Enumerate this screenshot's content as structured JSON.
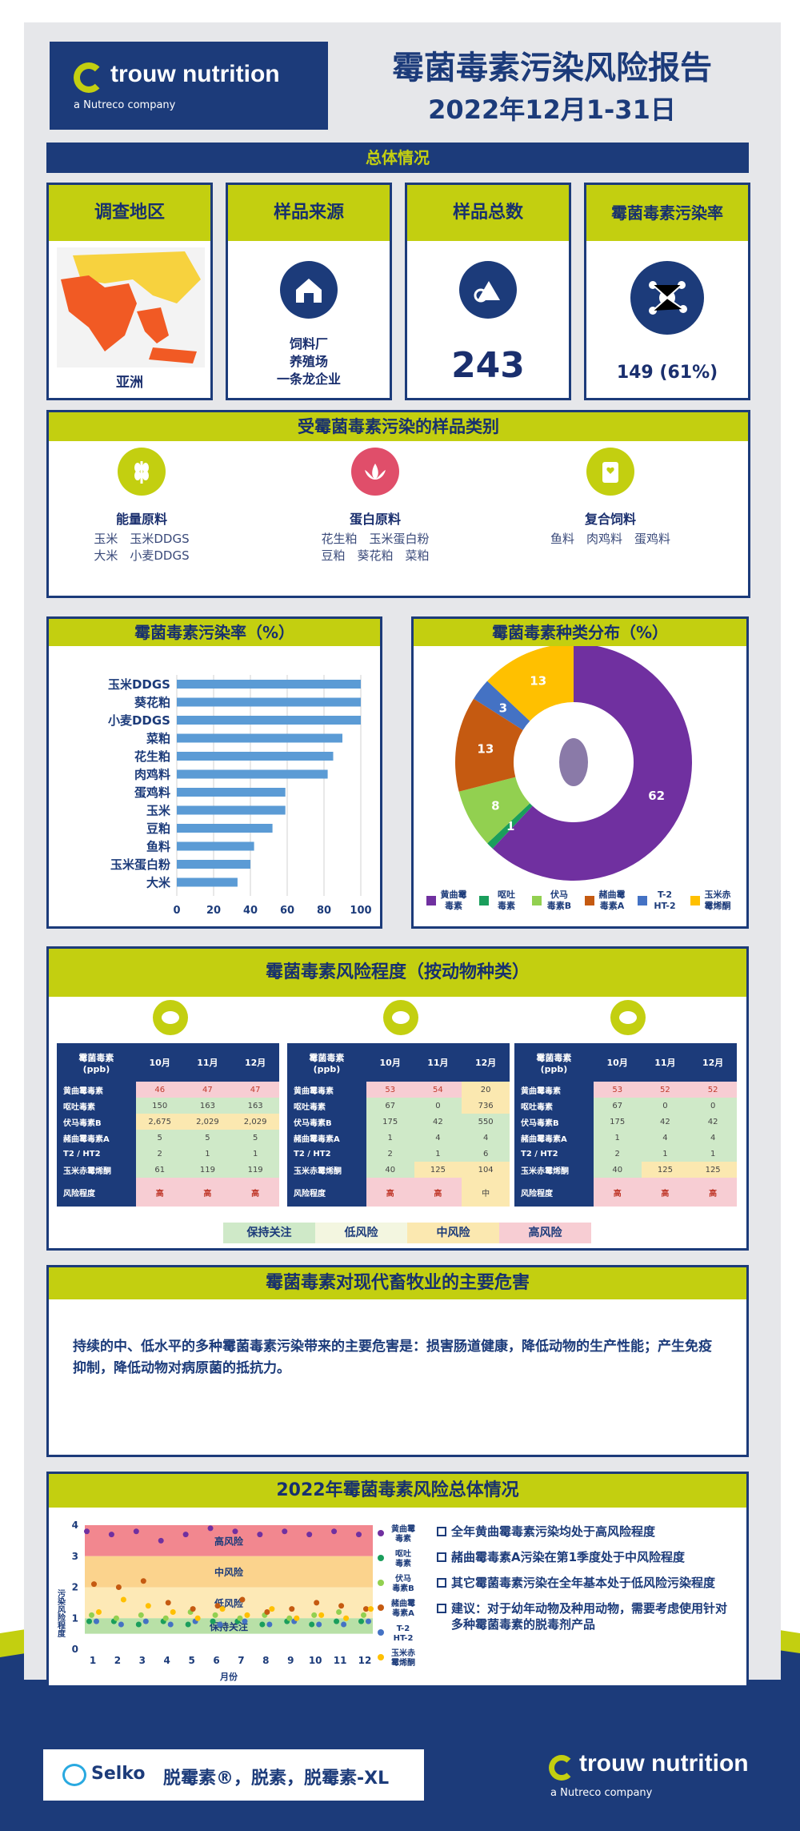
{
  "colors": {
    "navy": "#1c3b7a",
    "lime": "#c3cf10",
    "accent_blue": "#5b9bd5"
  },
  "header": {
    "logo_brand": "trouw nutrition",
    "logo_sub": "a Nutreco company",
    "title": "霉菌毒素污染风险报告",
    "date": "2022年12月1-31日"
  },
  "overview": {
    "band": "总体情况",
    "cards": [
      {
        "title": "调查地区",
        "value": "亚洲",
        "icon": "asia-map-icon"
      },
      {
        "title": "样品来源",
        "value": [
          "饲料厂",
          "养殖场",
          "一条龙企业"
        ],
        "icon": "barn-icon"
      },
      {
        "title": "样品总数",
        "value": "243",
        "icon": "sample-icon"
      },
      {
        "title": "霉菌毒素污染率",
        "value": "149 (61%)",
        "icon": "molecule-icon"
      }
    ]
  },
  "categories": {
    "title": "受霉菌毒素污染的样品类别",
    "items": [
      {
        "name": "能量原料",
        "lines": [
          "玉米　玉米DDGS",
          "大米　小麦DDGS"
        ],
        "icon": "wheat-icon",
        "color": "#c3cf10"
      },
      {
        "name": "蛋白原料",
        "lines": [
          "花生粕　玉米蛋白粉",
          "豆粕　葵花粕　菜粕"
        ],
        "icon": "lotus-icon",
        "color": "#e04e6a"
      },
      {
        "name": "复合饲料",
        "lines": [
          "鱼料　肉鸡料　蛋鸡料"
        ],
        "icon": "feed-bag-icon",
        "color": "#c3cf10"
      }
    ]
  },
  "chart_data": [
    {
      "type": "bar",
      "title": "霉菌毒素污染率（%）",
      "orientation": "horizontal",
      "categories": [
        "玉米DDGS",
        "葵花粕",
        "小麦DDGS",
        "菜粕",
        "花生粕",
        "肉鸡料",
        "蛋鸡料",
        "玉米",
        "豆粕",
        "鱼料",
        "玉米蛋白粉",
        "大米"
      ],
      "values": [
        100,
        100,
        100,
        90,
        85,
        82,
        59,
        59,
        52,
        42,
        40,
        33
      ],
      "xlim": [
        0,
        100
      ],
      "xticks": [
        "0",
        "20",
        "40",
        "60",
        "80",
        "100"
      ],
      "grid": true
    },
    {
      "type": "pie",
      "title": "霉菌毒素种类分布（%）",
      "donut": true,
      "series": [
        {
          "name": "黄曲霉毒素",
          "value": 62,
          "color": "#7030a0"
        },
        {
          "name": "呕吐毒素",
          "value": 1,
          "color": "#1a9e5c"
        },
        {
          "name": "伏马毒素B",
          "value": 8,
          "color": "#92d050"
        },
        {
          "name": "赭曲霉毒素A",
          "value": 13,
          "color": "#c55a11"
        },
        {
          "name": "T-2 HT-2",
          "value": 3,
          "color": "#4472c4"
        },
        {
          "name": "玉米赤霉烯酮",
          "value": 13,
          "color": "#ffc000"
        }
      ],
      "legend_labels": [
        [
          "黄曲霉",
          "毒素"
        ],
        [
          "呕吐",
          "毒素"
        ],
        [
          "伏马",
          "毒素B"
        ],
        [
          "赭曲霉",
          "毒素A"
        ],
        [
          "T-2",
          "HT-2"
        ],
        [
          "玉米赤",
          "霉烯酮"
        ]
      ],
      "legend": "bottom"
    },
    {
      "type": "scatter",
      "title": "2022年霉菌毒素风险总体情况",
      "xlabel": "月份",
      "ylabel": "污染风险程度",
      "xlim": [
        1,
        12
      ],
      "ylim": [
        0,
        4
      ],
      "xticks": [
        "1",
        "2",
        "3",
        "4",
        "5",
        "6",
        "7",
        "8",
        "9",
        "10",
        "11",
        "12"
      ],
      "yticks": [
        "0",
        "1",
        "2",
        "3",
        "4"
      ],
      "bands": [
        {
          "label": "高风险",
          "from": 3,
          "to": 4,
          "color": "#f2878f"
        },
        {
          "label": "中风险",
          "from": 2,
          "to": 3,
          "color": "#fbd38d"
        },
        {
          "label": "低风险",
          "from": 1,
          "to": 2,
          "color": "#fde9b6"
        },
        {
          "label": "保持关注",
          "from": 0.5,
          "to": 1,
          "color": "#b8e0a7"
        }
      ],
      "series": [
        {
          "name": "黄曲霉毒素",
          "color": "#7030a0",
          "values": [
            3.8,
            3.7,
            3.8,
            3.5,
            3.7,
            3.9,
            3.8,
            3.7,
            3.8,
            3.7,
            3.8,
            3.7
          ]
        },
        {
          "name": "呕吐毒素",
          "color": "#1a9e5c",
          "values": [
            0.9,
            0.9,
            0.8,
            0.9,
            0.8,
            0.9,
            0.9,
            0.8,
            0.9,
            0.8,
            0.9,
            0.9
          ]
        },
        {
          "name": "伏马毒素B",
          "color": "#92d050",
          "values": [
            1.1,
            1.0,
            1.1,
            1.0,
            1.2,
            1.1,
            1.0,
            1.1,
            1.0,
            1.1,
            1.2,
            1.1
          ]
        },
        {
          "name": "赭曲霉毒素A",
          "color": "#c55a11",
          "values": [
            2.1,
            2.0,
            2.2,
            1.5,
            1.3,
            1.4,
            1.6,
            1.2,
            1.3,
            1.5,
            1.4,
            1.3
          ]
        },
        {
          "name": "T-2 HT-2",
          "color": "#4472c4",
          "values": [
            0.9,
            0.8,
            0.9,
            0.8,
            0.9,
            0.8,
            0.9,
            0.8,
            0.9,
            0.8,
            0.8,
            0.9
          ]
        },
        {
          "name": "玉米赤霉烯酮",
          "color": "#ffc000",
          "values": [
            1.2,
            1.6,
            1.4,
            1.2,
            1.0,
            1.3,
            1.1,
            1.3,
            1.0,
            1.1,
            1.0,
            1.3
          ]
        }
      ],
      "legend_labels": [
        [
          "黄曲霉",
          "毒素"
        ],
        [
          "呕吐",
          "毒素"
        ],
        [
          "伏马",
          "毒素B"
        ],
        [
          "赭曲霉",
          "毒素A"
        ],
        [
          "T-2",
          "HT-2"
        ],
        [
          "玉米赤",
          "霉烯酮"
        ]
      ]
    }
  ],
  "risk": {
    "title": "霉菌毒素风险程度（按动物种类）",
    "tables": [
      {
        "animal": "chicken-icon",
        "head": [
          "霉菌毒素\n(ppb)",
          "10月",
          "11月",
          "12月"
        ],
        "rows": [
          [
            "黄曲霉毒素",
            "46",
            "47",
            "47",
            "r",
            "r",
            "r"
          ],
          [
            "呕吐毒素",
            "150",
            "163",
            "163",
            "g",
            "g",
            "g"
          ],
          [
            "伏马毒素B",
            "2,675",
            "2,029",
            "2,029",
            "y",
            "y",
            "y"
          ],
          [
            "赭曲霉毒素A",
            "5",
            "5",
            "5",
            "g",
            "g",
            "g"
          ],
          [
            "T2 / HT2",
            "2",
            "1",
            "1",
            "g",
            "g",
            "g"
          ],
          [
            "玉米赤霉烯酮",
            "61",
            "119",
            "119",
            "g",
            "g",
            "g"
          ]
        ],
        "risk": [
          "高",
          "高",
          "高"
        ],
        "riskc": [
          "rr",
          "rr",
          "rr"
        ]
      },
      {
        "animal": "pig-icon",
        "head": [
          "霉菌毒素\n(ppb)",
          "10月",
          "11月",
          "12月"
        ],
        "rows": [
          [
            "黄曲霉毒素",
            "53",
            "54",
            "20",
            "r",
            "r",
            "y"
          ],
          [
            "呕吐毒素",
            "67",
            "0",
            "736",
            "g",
            "g",
            "y"
          ],
          [
            "伏马毒素B",
            "175",
            "42",
            "550",
            "g",
            "g",
            "g"
          ],
          [
            "赭曲霉毒素A",
            "1",
            "4",
            "4",
            "g",
            "g",
            "g"
          ],
          [
            "T2 / HT2",
            "2",
            "1",
            "6",
            "g",
            "g",
            "g"
          ],
          [
            "玉米赤霉烯酮",
            "40",
            "125",
            "104",
            "g",
            "y",
            "y"
          ]
        ],
        "risk": [
          "高",
          "高",
          "中"
        ],
        "riskc": [
          "rr",
          "rr",
          "y"
        ]
      },
      {
        "animal": "cow-icon",
        "head": [
          "霉菌毒素\n(ppb)",
          "10月",
          "11月",
          "12月"
        ],
        "rows": [
          [
            "黄曲霉毒素",
            "53",
            "52",
            "52",
            "r",
            "r",
            "r"
          ],
          [
            "呕吐毒素",
            "67",
            "0",
            "0",
            "g",
            "g",
            "g"
          ],
          [
            "伏马毒素B",
            "175",
            "42",
            "42",
            "g",
            "g",
            "g"
          ],
          [
            "赭曲霉毒素A",
            "1",
            "4",
            "4",
            "g",
            "g",
            "g"
          ],
          [
            "T2 / HT2",
            "2",
            "1",
            "1",
            "g",
            "g",
            "g"
          ],
          [
            "玉米赤霉烯酮",
            "40",
            "125",
            "125",
            "g",
            "y",
            "y"
          ]
        ],
        "risk": [
          "高",
          "高",
          "高"
        ],
        "riskc": [
          "rr",
          "rr",
          "rr"
        ]
      }
    ],
    "legend": [
      {
        "label": "保持关注",
        "color": "#cfe9c8"
      },
      {
        "label": "低风险",
        "color": "#f3f6e0"
      },
      {
        "label": "中风险",
        "color": "#fbe8b0"
      },
      {
        "label": "高风险",
        "color": "#f7cdd3"
      }
    ],
    "risk_label": "风险程度"
  },
  "harm": {
    "title": "霉菌毒素对现代畜牧业的主要危害",
    "text": "持续的中、低水平的多种霉菌毒素污染带来的主要危害是：损害肠道健康，降低动物的生产性能；产生免疫抑制，降低动物对病原菌的抵抗力。"
  },
  "annual": {
    "bullets": [
      "全年黄曲霉毒素污染均处于高风险程度",
      "赭曲霉毒素A污染在第1季度处于中风险程度",
      "其它霉菌毒素污染在全年基本处于低风险污染程度",
      "建议：对于幼年动物及种用动物，需要考虑使用针对多种霉菌毒素的脱毒剂产品"
    ]
  },
  "footer": {
    "selko": "Selko",
    "products": "脱霉素®，脱素，脱霉素-XL",
    "brand": "trouw nutrition",
    "sub": "a Nutreco company"
  }
}
